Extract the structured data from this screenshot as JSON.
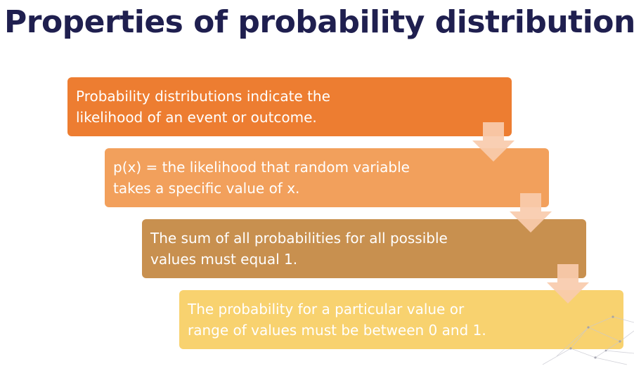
{
  "title": "Properties of probability distributions",
  "steps": [
    {
      "line1": "Probability distributions indicate the",
      "line2": "likelihood of an event or outcome."
    },
    {
      "line1": "p(x) = the likelihood that random variable",
      "line2": "takes a specific value of x."
    },
    {
      "line1": "The sum of all probabilities for all possible",
      "line2": "values must equal 1."
    },
    {
      "line1": "The probability for a particular value or",
      "line2": "range of values must be between 0 and 1."
    }
  ],
  "colors": {
    "title": "#1f1f4f",
    "step_1": "#ed7d31",
    "step_2": "#f2a05c",
    "step_3": "#c8904f",
    "step_4": "#f8d26f",
    "arrow": "#f8cbad"
  },
  "icons": [
    "down-arrow-icon",
    "network-decoration"
  ]
}
